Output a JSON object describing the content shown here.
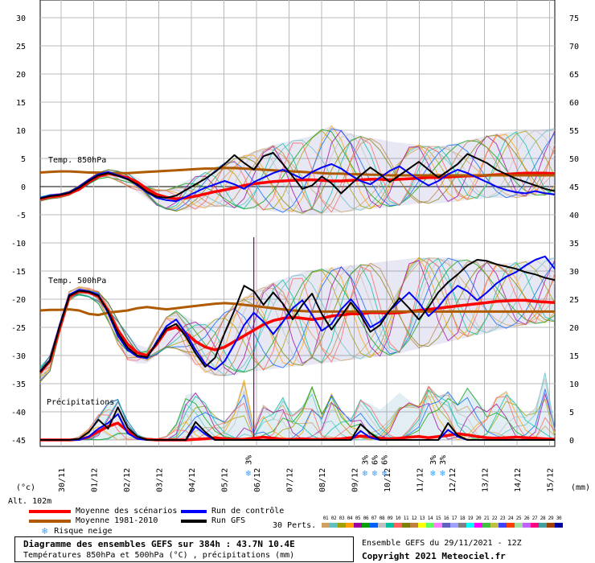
{
  "chart_data": {
    "type": "line",
    "title": "Diagramme des ensembles GEFS sur 384h : 43.7N 10.4E",
    "subtitle": "Températures 850hPa et 500hPa (°C) , précipitations (mm)",
    "left_axis": {
      "ticks": [
        30,
        25,
        20,
        15,
        10,
        5,
        0,
        -5,
        -10,
        -15,
        -20,
        -25,
        -30,
        -35,
        -40,
        -45
      ],
      "unit_label": "(°c)"
    },
    "right_axis": {
      "ticks": [
        75,
        70,
        65,
        60,
        55,
        50,
        45,
        40,
        35,
        30,
        25,
        20,
        15,
        10,
        5,
        0
      ],
      "unit_label": "(mm)"
    },
    "x_tick_labels": [
      "30/11",
      "01/12",
      "02/12",
      "03/12",
      "04/12",
      "05/12",
      "06/12",
      "07/12",
      "08/12",
      "09/12",
      "10/12",
      "11/12",
      "12/12",
      "13/12",
      "14/12",
      "15/12"
    ],
    "altitude_label": "Alt. 102m",
    "section_labels": {
      "t850": "Temp. 850hPa",
      "t500": "Temp. 500hPa",
      "precip": "Précipitations"
    },
    "series": [
      {
        "name": "Moyenne des scénarios",
        "group": "t850",
        "color": "#ff0000",
        "values": [
          -2.2,
          -1.8,
          -1.6,
          -1.2,
          -0.5,
          0.8,
          1.8,
          2.3,
          2.0,
          1.6,
          0.8,
          -0.4,
          -1.4,
          -1.9,
          -2.2,
          -2.0,
          -1.7,
          -1.3,
          -0.9,
          -0.6,
          -0.2,
          0.2,
          0.5,
          0.7,
          0.9,
          1.0,
          1.1,
          1.2,
          1.2,
          1.1,
          1.0,
          1.0,
          1.1,
          1.2,
          1.3,
          1.3,
          1.2,
          1.3,
          1.4,
          1.5,
          1.6,
          1.6,
          1.7,
          1.8,
          1.9,
          1.9,
          2.0,
          2.1,
          2.2,
          2.3,
          2.4,
          2.4,
          2.4,
          2.3
        ]
      },
      {
        "name": "Moyenne 1981-2010",
        "group": "t850",
        "color": "#b05a00",
        "values": [
          2.5,
          2.6,
          2.7,
          2.7,
          2.6,
          2.5,
          2.5,
          2.4,
          2.4,
          2.4,
          2.5,
          2.6,
          2.7,
          2.8,
          2.9,
          3.0,
          3.1,
          3.2,
          3.2,
          3.3,
          3.3,
          3.2,
          3.1,
          3.0,
          2.9,
          2.8,
          2.7,
          2.6,
          2.5,
          2.4,
          2.3,
          2.3,
          2.2,
          2.2,
          2.1,
          2.1,
          2.0,
          2.0,
          2.0,
          2.0,
          2.0,
          2.0,
          2.0,
          2.0,
          2.0,
          2.0,
          2.0,
          2.0,
          2.0,
          2.0,
          2.0,
          2.0,
          2.0,
          2.0
        ]
      },
      {
        "name": "Run de contrôle",
        "group": "t850",
        "color": "#0000ff",
        "values": [
          -2.0,
          -1.6,
          -1.4,
          -1.0,
          0.0,
          1.2,
          2.2,
          2.6,
          2.0,
          1.4,
          0.2,
          -1.0,
          -2.0,
          -2.4,
          -2.6,
          -1.8,
          -1.0,
          -0.2,
          0.4,
          1.0,
          0.4,
          -0.4,
          0.8,
          1.6,
          2.4,
          3.0,
          2.2,
          1.4,
          2.6,
          3.4,
          4.0,
          3.2,
          2.0,
          1.0,
          0.4,
          1.6,
          2.8,
          3.6,
          2.4,
          1.2,
          0.2,
          1.0,
          2.2,
          3.0,
          2.4,
          1.6,
          0.8,
          0.0,
          -0.6,
          -1.0,
          -1.2,
          -0.8,
          -1.2,
          -1.4
        ]
      },
      {
        "name": "Run GFS",
        "group": "t850",
        "color": "#000000",
        "values": [
          -2.1,
          -1.7,
          -1.5,
          -1.1,
          -0.2,
          1.0,
          2.0,
          2.4,
          1.9,
          1.3,
          0.4,
          -0.9,
          -1.8,
          -2.0,
          -1.6,
          -0.6,
          0.4,
          1.4,
          2.6,
          4.0,
          5.6,
          4.2,
          3.0,
          5.4,
          6.0,
          4.0,
          1.8,
          -0.4,
          0.2,
          1.8,
          0.6,
          -1.2,
          0.4,
          2.0,
          3.4,
          2.2,
          0.8,
          2.0,
          3.2,
          4.4,
          3.0,
          1.6,
          2.8,
          4.0,
          5.8,
          5.0,
          4.2,
          3.0,
          2.2,
          1.4,
          0.8,
          0.2,
          -0.4,
          -0.8
        ]
      },
      {
        "name": "Moyenne des scénarios",
        "group": "t500",
        "color": "#ff0000",
        "values": [
          -33.0,
          -31.0,
          -25.0,
          -19.5,
          -18.6,
          -18.8,
          -19.5,
          -22.0,
          -25.5,
          -28.0,
          -29.5,
          -30.0,
          -28.0,
          -25.5,
          -25.0,
          -26.0,
          -27.5,
          -28.5,
          -29.0,
          -28.5,
          -27.5,
          -26.5,
          -25.5,
          -24.5,
          -23.8,
          -23.4,
          -23.2,
          -23.4,
          -23.6,
          -23.4,
          -23.0,
          -22.8,
          -22.6,
          -22.6,
          -22.4,
          -22.4,
          -22.5,
          -22.4,
          -22.2,
          -22.0,
          -21.8,
          -21.6,
          -21.4,
          -21.2,
          -21.0,
          -20.8,
          -20.6,
          -20.4,
          -20.3,
          -20.2,
          -20.2,
          -20.4,
          -20.5,
          -20.6
        ]
      },
      {
        "name": "Moyenne 1981-2010",
        "group": "t500",
        "color": "#b05a00",
        "values": [
          -22.0,
          -21.9,
          -21.9,
          -21.8,
          -22.0,
          -22.6,
          -22.8,
          -22.4,
          -22.2,
          -22.0,
          -21.6,
          -21.4,
          -21.6,
          -21.8,
          -21.6,
          -21.4,
          -21.2,
          -21.0,
          -20.8,
          -20.7,
          -20.8,
          -21.0,
          -21.2,
          -21.4,
          -21.6,
          -21.8,
          -22.0,
          -22.1,
          -22.2,
          -22.2,
          -22.2,
          -22.2,
          -22.2,
          -22.2,
          -22.2,
          -22.2,
          -22.2,
          -22.2,
          -22.2,
          -22.2,
          -22.2,
          -22.2,
          -22.2,
          -22.2,
          -22.2,
          -22.2,
          -22.2,
          -22.2,
          -22.2,
          -22.2,
          -22.2,
          -22.2,
          -22.2,
          -22.2
        ]
      },
      {
        "name": "Run de contrôle",
        "group": "t500",
        "color": "#0000ff",
        "values": [
          -32.8,
          -30.8,
          -24.6,
          -19.2,
          -18.3,
          -18.6,
          -19.2,
          -22.5,
          -26.5,
          -29.0,
          -30.2,
          -30.5,
          -27.5,
          -24.8,
          -23.6,
          -26.0,
          -29.0,
          -31.5,
          -32.5,
          -31.0,
          -28.0,
          -24.6,
          -22.4,
          -24.0,
          -26.2,
          -24.0,
          -21.6,
          -20.2,
          -22.8,
          -25.6,
          -24.4,
          -21.8,
          -20.0,
          -22.2,
          -25.0,
          -24.0,
          -22.0,
          -20.4,
          -18.8,
          -20.6,
          -23.0,
          -21.4,
          -19.2,
          -17.6,
          -18.6,
          -20.2,
          -18.8,
          -17.2,
          -16.0,
          -15.2,
          -14.0,
          -13.0,
          -12.4,
          -14.6
        ]
      },
      {
        "name": "Run GFS",
        "group": "t500",
        "color": "#000000",
        "values": [
          -32.9,
          -30.9,
          -24.8,
          -19.4,
          -18.5,
          -18.7,
          -19.4,
          -22.2,
          -26.0,
          -28.6,
          -30.0,
          -30.3,
          -27.8,
          -25.2,
          -24.4,
          -26.6,
          -29.6,
          -32.0,
          -30.4,
          -26.0,
          -22.0,
          -17.6,
          -18.6,
          -21.0,
          -18.8,
          -20.8,
          -23.6,
          -21.0,
          -19.0,
          -22.6,
          -25.4,
          -23.0,
          -20.6,
          -22.8,
          -25.8,
          -24.6,
          -22.0,
          -19.8,
          -21.6,
          -23.6,
          -21.4,
          -18.8,
          -17.0,
          -15.6,
          -14.0,
          -13.0,
          -13.2,
          -13.8,
          -14.2,
          -14.6,
          -15.2,
          -15.6,
          -16.2,
          -16.6
        ]
      },
      {
        "name": "Moyenne des scénarios",
        "group": "precip",
        "color": "#ff0000",
        "values": [
          0.0,
          0.0,
          0.0,
          0.0,
          0.1,
          0.5,
          1.5,
          2.4,
          3.0,
          1.6,
          0.4,
          0.1,
          0.0,
          0.0,
          0.0,
          0.0,
          0.1,
          0.2,
          0.4,
          0.2,
          0.1,
          0.1,
          0.3,
          0.5,
          0.3,
          0.1,
          0.1,
          0.2,
          0.1,
          0.1,
          0.1,
          0.2,
          0.4,
          0.7,
          0.5,
          0.3,
          0.2,
          0.3,
          0.5,
          0.6,
          0.4,
          0.6,
          0.8,
          1.1,
          0.9,
          0.6,
          0.4,
          0.3,
          0.4,
          0.5,
          0.4,
          0.3,
          0.2,
          0.1
        ]
      },
      {
        "name": "Run de contrôle",
        "group": "precip",
        "color": "#0000ff",
        "values": [
          0.0,
          0.0,
          0.0,
          0.0,
          0.0,
          0.6,
          2.0,
          3.0,
          4.6,
          1.2,
          0.2,
          0.0,
          0.0,
          0.0,
          0.0,
          0.0,
          2.4,
          1.0,
          0.0,
          0.0,
          0.0,
          0.0,
          0.0,
          0.0,
          0.0,
          0.0,
          0.0,
          0.0,
          0.0,
          0.0,
          0.0,
          0.0,
          0.0,
          1.6,
          0.4,
          0.0,
          0.0,
          0.0,
          0.0,
          0.0,
          0.0,
          0.0,
          1.8,
          0.6,
          0.0,
          0.0,
          0.0,
          0.0,
          0.0,
          0.0,
          0.0,
          0.0,
          0.0,
          0.0
        ]
      },
      {
        "name": "Run GFS",
        "group": "precip",
        "color": "#000000",
        "values": [
          0.0,
          0.0,
          0.0,
          0.0,
          0.2,
          1.4,
          3.6,
          2.0,
          5.8,
          2.2,
          0.6,
          0.0,
          0.0,
          0.0,
          0.0,
          0.0,
          3.2,
          1.4,
          0.0,
          0.0,
          0.0,
          0.0,
          0.0,
          0.0,
          0.0,
          0.0,
          0.0,
          0.0,
          0.0,
          0.0,
          0.0,
          0.0,
          0.0,
          2.8,
          1.2,
          0.0,
          0.0,
          0.0,
          0.0,
          0.0,
          0.0,
          0.0,
          3.0,
          0.8,
          0.0,
          0.0,
          0.0,
          0.0,
          0.0,
          0.0,
          0.0,
          0.0,
          0.0,
          0.0
        ]
      }
    ],
    "ensemble_spread": {
      "t850_low": [
        -2.6,
        -2.2,
        -2.0,
        -1.6,
        -0.8,
        0.4,
        1.4,
        1.6,
        1.0,
        0.0,
        -1.0,
        -2.2,
        -3.4,
        -4.0,
        -4.4,
        -4.2,
        -4.0,
        -3.8,
        -3.6,
        -3.6,
        -3.8,
        -4.0,
        -4.0,
        -4.2,
        -4.4,
        -4.6,
        -4.6,
        -4.8,
        -5.0,
        -4.8,
        -4.6,
        -4.6,
        -4.4,
        -4.2,
        -4.0,
        -3.8,
        -3.6,
        -3.4,
        -3.2,
        -3.0,
        -3.0,
        -3.0,
        -2.8,
        -2.6,
        -2.4,
        -2.2,
        -2.0,
        -2.0,
        -2.0,
        -2.0,
        -1.8,
        -1.6,
        -1.6,
        -1.6
      ],
      "t850_high": [
        -1.8,
        -1.4,
        -1.2,
        -0.8,
        0.2,
        1.4,
        2.6,
        3.0,
        2.8,
        2.4,
        1.6,
        0.6,
        -0.4,
        -0.6,
        0.0,
        1.0,
        1.8,
        2.6,
        3.4,
        4.2,
        5.0,
        5.6,
        6.2,
        6.8,
        7.4,
        7.8,
        8.2,
        8.6,
        9.0,
        10.2,
        10.8,
        10.0,
        9.4,
        9.0,
        8.6,
        8.4,
        8.0,
        7.8,
        7.6,
        7.4,
        7.2,
        7.2,
        7.4,
        7.8,
        8.2,
        8.6,
        9.0,
        9.4,
        9.6,
        9.8,
        10.0,
        10.0,
        10.2,
        10.4
      ],
      "t500_low": [
        -34.8,
        -32.8,
        -26.0,
        -20.4,
        -19.4,
        -19.6,
        -20.8,
        -24.0,
        -28.0,
        -30.8,
        -31.4,
        -31.4,
        -30.0,
        -28.6,
        -28.8,
        -30.0,
        -31.6,
        -33.0,
        -33.6,
        -33.8,
        -33.4,
        -33.0,
        -32.8,
        -32.6,
        -32.4,
        -32.2,
        -32.0,
        -31.8,
        -31.6,
        -31.4,
        -31.2,
        -31.0,
        -30.8,
        -30.6,
        -30.4,
        -30.2,
        -30.0,
        -29.6,
        -29.2,
        -28.8,
        -28.4,
        -28.0,
        -27.6,
        -27.2,
        -26.8,
        -26.4,
        -26.0,
        -25.6,
        -25.2,
        -24.8,
        -24.6,
        -24.4,
        -24.2,
        -24.0
      ],
      "t500_high": [
        -32.0,
        -30.0,
        -24.2,
        -18.6,
        -17.8,
        -18.0,
        -18.6,
        -20.6,
        -23.6,
        -26.2,
        -28.0,
        -28.6,
        -25.8,
        -23.2,
        -22.0,
        -23.0,
        -24.0,
        -24.4,
        -23.6,
        -22.4,
        -20.8,
        -19.6,
        -18.6,
        -17.8,
        -17.0,
        -16.4,
        -15.8,
        -15.2,
        -14.8,
        -14.6,
        -14.4,
        -14.2,
        -14.0,
        -13.8,
        -13.6,
        -13.4,
        -13.2,
        -13.0,
        -12.8,
        -12.6,
        -12.6,
        -12.6,
        -12.6,
        -12.8,
        -13.0,
        -13.2,
        -13.4,
        -13.6,
        -13.6,
        -13.4,
        -13.2,
        -13.0,
        -12.8,
        -12.6
      ],
      "precip_high": [
        0.0,
        0.0,
        0.0,
        0.0,
        0.6,
        2.0,
        4.6,
        6.6,
        7.4,
        3.4,
        1.2,
        0.4,
        0.2,
        0.6,
        2.8,
        8.0,
        8.4,
        6.6,
        4.2,
        3.2,
        5.6,
        10.8,
        2.2,
        6.2,
        5.0,
        7.6,
        4.4,
        6.0,
        9.6,
        4.6,
        8.2,
        5.2,
        3.8,
        7.2,
        6.4,
        5.4,
        6.8,
        8.4,
        7.0,
        6.0,
        9.6,
        7.8,
        8.6,
        6.4,
        9.2,
        7.2,
        5.0,
        7.6,
        8.8,
        6.4,
        4.4,
        5.6,
        12.4,
        2.0
      ]
    },
    "snow_risk_markers": [
      {
        "date_label": "06/12",
        "pct": [
          "3%"
        ]
      },
      {
        "date_label": "09/12",
        "pct": [
          "3%"
        ]
      },
      {
        "date_label": "09/12",
        "pct": [
          "6%"
        ]
      },
      {
        "date_label": "09/12",
        "pct": [
          "6%"
        ]
      },
      {
        "date_label": "11/12",
        "pct": [
          "3%"
        ]
      },
      {
        "date_label": "11/12",
        "pct": [
          "3%"
        ]
      }
    ],
    "snow_risk_positions": [
      21.5,
      33.5,
      34.5,
      35.5,
      40.5,
      41.5
    ],
    "precip_spike": {
      "index": 22,
      "value": 36.0
    },
    "grid": true,
    "n_steps": 54
  },
  "legend": {
    "mean": "Moyenne des scénarios",
    "climato": "Moyenne 1981-2010",
    "snow": "Risque neige",
    "control": "Run de contrôle",
    "gfs": "Run GFS",
    "perts": "30 Perts.",
    "pert_numbers": [
      "01",
      "02",
      "03",
      "04",
      "05",
      "06",
      "07",
      "08",
      "09",
      "10",
      "11",
      "12",
      "13",
      "14",
      "15",
      "16",
      "17",
      "18",
      "19",
      "20",
      "21",
      "22",
      "23",
      "24",
      "25",
      "26",
      "27",
      "28",
      "29",
      "30"
    ],
    "pert_colors": [
      "#d0a060",
      "#60c0c0",
      "#a0a000",
      "#ffa000",
      "#a000a0",
      "#00a000",
      "#0060ff",
      "#c0c0c0",
      "#00c0a0",
      "#ff6060",
      "#808000",
      "#c08040",
      "#ffff00",
      "#60ff60",
      "#ff80ff",
      "#6060c0",
      "#a0a0ff",
      "#808080",
      "#00ffff",
      "#ff00ff",
      "#40c040",
      "#c0c040",
      "#4040ff",
      "#ff4000",
      "#a0e0a0",
      "#c060ff",
      "#ff0080",
      "#40a0a0",
      "#a04000",
      "#0000a0"
    ],
    "colors": {
      "mean": "#ff0000",
      "climato": "#b05a00",
      "control": "#0000ff",
      "gfs": "#000000",
      "snow": "#40a0ff"
    }
  },
  "footer": {
    "title": "Diagramme des ensembles GEFS sur 384h : 43.7N 10.4E",
    "subtitle": "Températures 850hPa et 500hPa (°C) , précipitations (mm)",
    "run_info": "Ensemble GEFS du 29/11/2021 - 12Z",
    "copyright": "Copyright 2021 Meteociel.fr"
  }
}
